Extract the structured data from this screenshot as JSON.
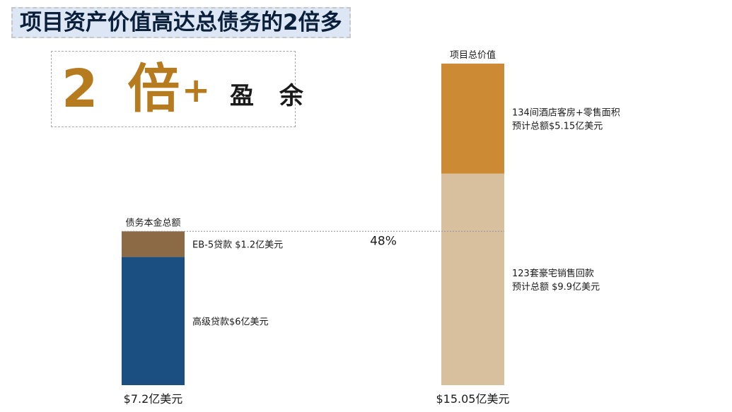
{
  "title": "项目资产价值高达总债务的2倍多",
  "callout": {
    "multiplier": "2 倍",
    "plus": "+",
    "surplus": "盈 余"
  },
  "chart_data": {
    "type": "bar",
    "stacked": true,
    "unit": "亿美元",
    "percent_annotation": "48%",
    "bars": [
      {
        "header": "债务本金总额",
        "total": 7.2,
        "total_label": "$7.2亿美元",
        "segments": [
          {
            "value": 6.0,
            "color": "#1b4f82",
            "lines": [
              "高级贷款$6亿美元"
            ]
          },
          {
            "value": 1.2,
            "color": "#8c6a45",
            "lines": [
              "EB-5贷款 $1.2亿美元"
            ]
          }
        ]
      },
      {
        "header": "项目总价值",
        "total": 15.05,
        "total_label": "$15.05亿美元",
        "segments": [
          {
            "value": 9.9,
            "color": "#d8bf9e",
            "lines": [
              "123套豪宅销售回款",
              "预计总额 $9.9亿美元"
            ]
          },
          {
            "value": 5.15,
            "color": "#cc8a35",
            "lines": [
              "134间酒店客房+零售面积",
              "预计总额$5.15亿美元"
            ]
          }
        ]
      }
    ]
  }
}
